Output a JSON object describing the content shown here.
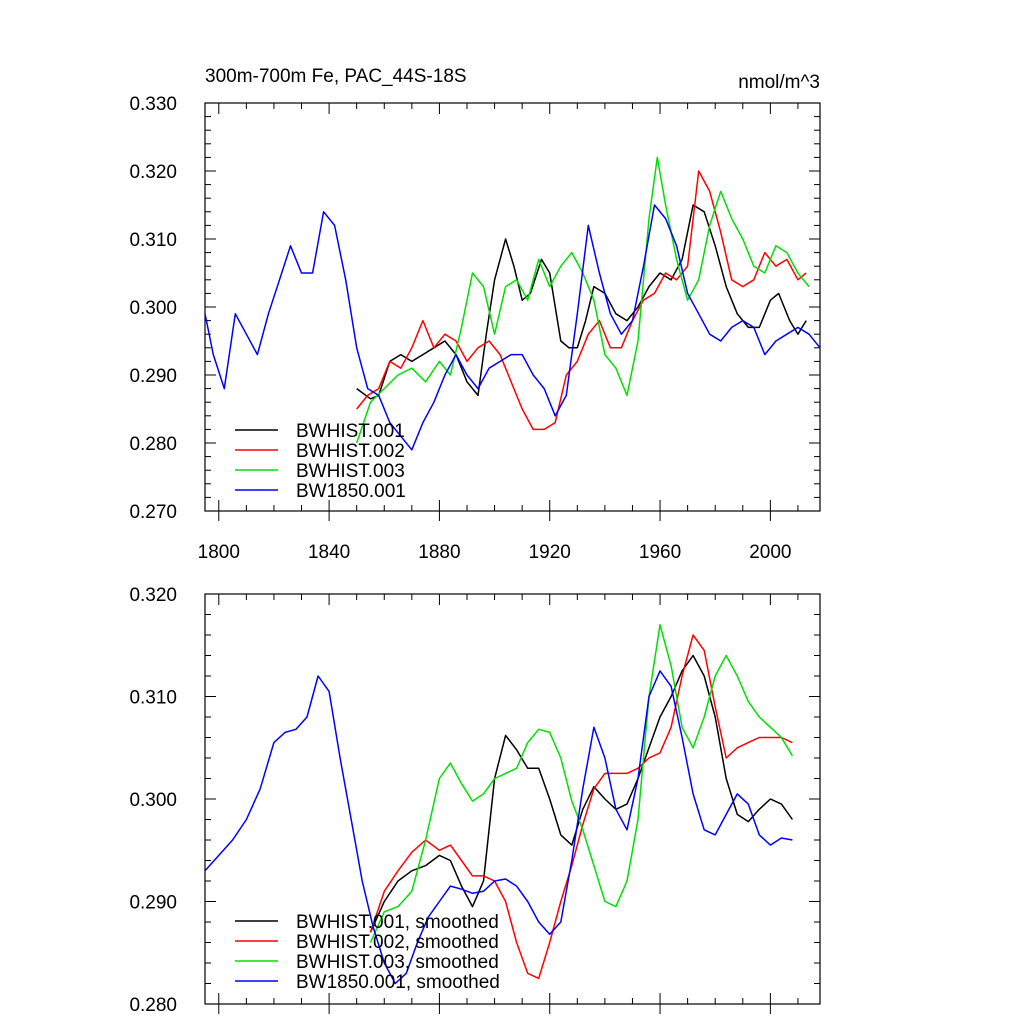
{
  "chart_data": [
    {
      "type": "line",
      "title": "300m-700m Fe, PAC_44S-18S",
      "units": "nmol/m^3",
      "xlim": [
        1795,
        2018
      ],
      "ylim": [
        0.27,
        0.33
      ],
      "xticks": [
        1800,
        1840,
        1880,
        1920,
        1960,
        2000
      ],
      "xtick_labels": [
        "1800",
        "1840",
        "1880",
        "1920",
        "1960",
        "2000"
      ],
      "yticks": [
        0.27,
        0.28,
        0.29,
        0.3,
        0.31,
        0.32,
        0.33
      ],
      "ytick_labels": [
        "0.270",
        "0.280",
        "0.290",
        "0.300",
        "0.310",
        "0.320",
        "0.330"
      ],
      "legend_position": "bottom-left",
      "series": [
        {
          "name": "BWHIST.001",
          "color": "#000000",
          "x": [
            1850,
            1855,
            1858,
            1862,
            1866,
            1870,
            1874,
            1878,
            1882,
            1886,
            1890,
            1894,
            1897,
            1900,
            1904,
            1907,
            1910,
            1913,
            1917,
            1920,
            1924,
            1927,
            1930,
            1933,
            1936,
            1940,
            1944,
            1948,
            1952,
            1956,
            1960,
            1964,
            1968,
            1972,
            1976,
            1980,
            1984,
            1988,
            1992,
            1996,
            2000,
            2003,
            2007,
            2010,
            2013
          ],
          "values": [
            0.288,
            0.2865,
            0.287,
            0.292,
            0.293,
            0.292,
            0.293,
            0.294,
            0.295,
            0.293,
            0.289,
            0.287,
            0.296,
            0.304,
            0.31,
            0.306,
            0.301,
            0.302,
            0.307,
            0.305,
            0.295,
            0.294,
            0.294,
            0.298,
            0.303,
            0.302,
            0.299,
            0.298,
            0.3,
            0.303,
            0.305,
            0.304,
            0.307,
            0.315,
            0.314,
            0.309,
            0.303,
            0.299,
            0.297,
            0.297,
            0.301,
            0.302,
            0.298,
            0.296,
            0.298
          ]
        },
        {
          "name": "BWHIST.002",
          "color": "#ff0000",
          "x": [
            1850,
            1854,
            1858,
            1862,
            1866,
            1870,
            1874,
            1878,
            1882,
            1886,
            1890,
            1894,
            1898,
            1902,
            1906,
            1910,
            1914,
            1918,
            1922,
            1926,
            1930,
            1934,
            1938,
            1942,
            1946,
            1950,
            1954,
            1958,
            1962,
            1966,
            1970,
            1974,
            1978,
            1982,
            1986,
            1990,
            1994,
            1998,
            2002,
            2006,
            2010,
            2013
          ],
          "values": [
            0.285,
            0.287,
            0.288,
            0.292,
            0.291,
            0.294,
            0.298,
            0.294,
            0.296,
            0.295,
            0.292,
            0.294,
            0.295,
            0.293,
            0.289,
            0.285,
            0.282,
            0.282,
            0.283,
            0.29,
            0.292,
            0.296,
            0.298,
            0.294,
            0.294,
            0.298,
            0.301,
            0.302,
            0.305,
            0.304,
            0.306,
            0.32,
            0.317,
            0.311,
            0.304,
            0.303,
            0.304,
            0.308,
            0.306,
            0.307,
            0.304,
            0.305
          ]
        },
        {
          "name": "BWHIST.003",
          "color": "#00e000",
          "x": [
            1850,
            1855,
            1860,
            1865,
            1870,
            1875,
            1880,
            1884,
            1888,
            1892,
            1896,
            1900,
            1904,
            1908,
            1912,
            1916,
            1920,
            1924,
            1928,
            1932,
            1936,
            1940,
            1944,
            1948,
            1952,
            1956,
            1959,
            1962,
            1966,
            1970,
            1974,
            1978,
            1982,
            1986,
            1990,
            1994,
            1998,
            2002,
            2006,
            2010,
            2014
          ],
          "values": [
            0.28,
            0.286,
            0.288,
            0.29,
            0.291,
            0.289,
            0.292,
            0.29,
            0.297,
            0.305,
            0.303,
            0.296,
            0.303,
            0.304,
            0.301,
            0.307,
            0.303,
            0.306,
            0.308,
            0.305,
            0.301,
            0.293,
            0.291,
            0.287,
            0.295,
            0.313,
            0.322,
            0.315,
            0.307,
            0.301,
            0.304,
            0.312,
            0.317,
            0.313,
            0.31,
            0.306,
            0.305,
            0.309,
            0.308,
            0.305,
            0.303
          ]
        },
        {
          "name": "BW1850.001",
          "color": "#0000ff",
          "x": [
            1795,
            1798,
            1802,
            1806,
            1810,
            1814,
            1818,
            1822,
            1826,
            1830,
            1834,
            1838,
            1842,
            1846,
            1850,
            1854,
            1858,
            1862,
            1866,
            1870,
            1874,
            1878,
            1882,
            1886,
            1890,
            1894,
            1898,
            1902,
            1906,
            1910,
            1914,
            1918,
            1922,
            1926,
            1930,
            1934,
            1938,
            1942,
            1946,
            1950,
            1954,
            1958,
            1962,
            1966,
            1970,
            1974,
            1978,
            1982,
            1986,
            1990,
            1994,
            1998,
            2002,
            2006,
            2010,
            2014,
            2018
          ],
          "values": [
            0.299,
            0.293,
            0.288,
            0.299,
            0.296,
            0.293,
            0.299,
            0.304,
            0.309,
            0.305,
            0.305,
            0.314,
            0.312,
            0.304,
            0.294,
            0.288,
            0.287,
            0.283,
            0.281,
            0.279,
            0.283,
            0.286,
            0.29,
            0.293,
            0.29,
            0.288,
            0.291,
            0.292,
            0.293,
            0.293,
            0.29,
            0.288,
            0.284,
            0.287,
            0.299,
            0.312,
            0.305,
            0.299,
            0.296,
            0.298,
            0.306,
            0.315,
            0.313,
            0.309,
            0.302,
            0.299,
            0.296,
            0.295,
            0.297,
            0.298,
            0.297,
            0.293,
            0.295,
            0.296,
            0.297,
            0.296,
            0.294
          ]
        }
      ]
    },
    {
      "type": "line",
      "xlim": [
        1795,
        2018
      ],
      "ylim": [
        0.28,
        0.32
      ],
      "xticks": [
        1800,
        1840,
        1880,
        1920,
        1960,
        2000
      ],
      "yticks": [
        0.28,
        0.29,
        0.3,
        0.31,
        0.32
      ],
      "ytick_labels": [
        "0.280",
        "0.290",
        "0.300",
        "0.310",
        "0.320"
      ],
      "legend_position": "bottom-left",
      "series": [
        {
          "name": "BWHIST.001, smoothed",
          "color": "#000000",
          "x": [
            1855,
            1860,
            1865,
            1870,
            1875,
            1880,
            1884,
            1888,
            1892,
            1896,
            1900,
            1904,
            1908,
            1912,
            1916,
            1920,
            1924,
            1928,
            1932,
            1936,
            1940,
            1944,
            1948,
            1952,
            1956,
            1960,
            1964,
            1968,
            1972,
            1976,
            1980,
            1984,
            1988,
            1992,
            1996,
            2000,
            2004,
            2008
          ],
          "values": [
            0.287,
            0.29,
            0.292,
            0.293,
            0.2935,
            0.2945,
            0.294,
            0.2915,
            0.2895,
            0.292,
            0.302,
            0.3062,
            0.3048,
            0.303,
            0.303,
            0.3,
            0.2965,
            0.2955,
            0.299,
            0.3012,
            0.3,
            0.299,
            0.2995,
            0.302,
            0.305,
            0.308,
            0.31,
            0.3125,
            0.314,
            0.312,
            0.308,
            0.302,
            0.2985,
            0.2978,
            0.299,
            0.3,
            0.2995,
            0.298
          ]
        },
        {
          "name": "BWHIST.002, smoothed",
          "color": "#ff0000",
          "x": [
            1855,
            1860,
            1865,
            1870,
            1875,
            1880,
            1884,
            1888,
            1892,
            1896,
            1900,
            1904,
            1908,
            1912,
            1916,
            1920,
            1924,
            1928,
            1932,
            1936,
            1940,
            1944,
            1948,
            1952,
            1956,
            1960,
            1964,
            1968,
            1972,
            1976,
            1980,
            1984,
            1988,
            1992,
            1996,
            2000,
            2004,
            2008
          ],
          "values": [
            0.287,
            0.291,
            0.293,
            0.2948,
            0.296,
            0.295,
            0.2955,
            0.294,
            0.2925,
            0.2925,
            0.292,
            0.29,
            0.286,
            0.283,
            0.2825,
            0.286,
            0.29,
            0.2935,
            0.2975,
            0.301,
            0.3025,
            0.3025,
            0.3025,
            0.303,
            0.304,
            0.3045,
            0.307,
            0.312,
            0.316,
            0.3145,
            0.309,
            0.304,
            0.305,
            0.3055,
            0.306,
            0.306,
            0.306,
            0.3055
          ]
        },
        {
          "name": "BWHIST.003, smoothed",
          "color": "#00e000",
          "x": [
            1855,
            1860,
            1865,
            1870,
            1875,
            1880,
            1884,
            1888,
            1892,
            1896,
            1900,
            1904,
            1908,
            1912,
            1916,
            1920,
            1924,
            1928,
            1932,
            1936,
            1940,
            1944,
            1948,
            1952,
            1956,
            1960,
            1964,
            1968,
            1972,
            1976,
            1980,
            1984,
            1988,
            1992,
            1996,
            2000,
            2004,
            2008
          ],
          "values": [
            0.286,
            0.289,
            0.2895,
            0.291,
            0.296,
            0.302,
            0.3035,
            0.3015,
            0.2998,
            0.3005,
            0.302,
            0.3025,
            0.303,
            0.3055,
            0.3068,
            0.3065,
            0.304,
            0.2998,
            0.297,
            0.2935,
            0.29,
            0.2895,
            0.292,
            0.298,
            0.31,
            0.317,
            0.313,
            0.307,
            0.305,
            0.308,
            0.312,
            0.314,
            0.312,
            0.3095,
            0.308,
            0.307,
            0.306,
            0.3042
          ]
        },
        {
          "name": "BW1850.001, smoothed",
          "color": "#0000ff",
          "x": [
            1795,
            1800,
            1805,
            1810,
            1815,
            1820,
            1824,
            1828,
            1832,
            1836,
            1840,
            1844,
            1848,
            1852,
            1856,
            1860,
            1864,
            1868,
            1872,
            1876,
            1880,
            1884,
            1888,
            1892,
            1896,
            1900,
            1904,
            1908,
            1912,
            1916,
            1920,
            1924,
            1928,
            1932,
            1936,
            1940,
            1944,
            1948,
            1952,
            1956,
            1960,
            1964,
            1968,
            1972,
            1976,
            1980,
            1984,
            1988,
            1992,
            1996,
            2000,
            2004,
            2008
          ],
          "values": [
            0.293,
            0.2945,
            0.296,
            0.298,
            0.301,
            0.3055,
            0.3065,
            0.3068,
            0.308,
            0.312,
            0.3105,
            0.304,
            0.298,
            0.292,
            0.2875,
            0.284,
            0.282,
            0.283,
            0.286,
            0.2885,
            0.29,
            0.2915,
            0.2912,
            0.2908,
            0.291,
            0.292,
            0.2922,
            0.2915,
            0.29,
            0.288,
            0.2868,
            0.288,
            0.294,
            0.301,
            0.307,
            0.304,
            0.299,
            0.297,
            0.302,
            0.31,
            0.3125,
            0.311,
            0.306,
            0.3005,
            0.297,
            0.2965,
            0.2985,
            0.3005,
            0.2995,
            0.2965,
            0.2955,
            0.2962,
            0.296
          ]
        }
      ]
    }
  ]
}
